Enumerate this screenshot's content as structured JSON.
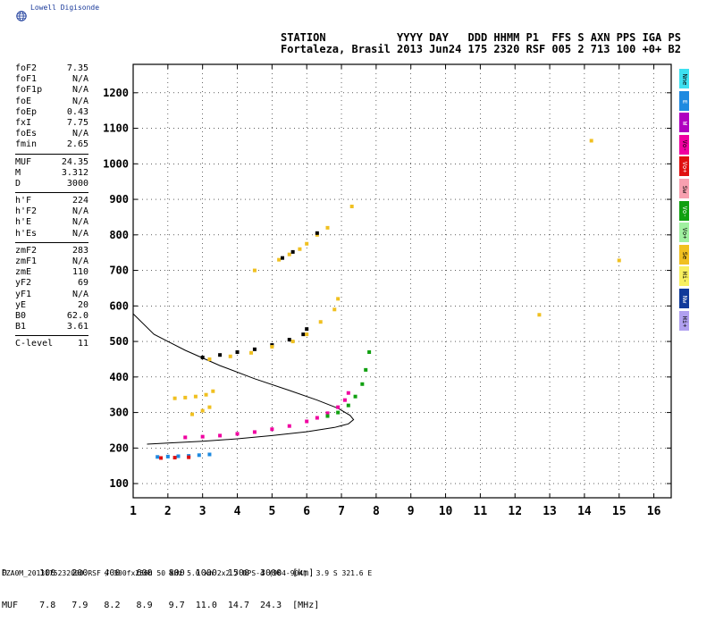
{
  "brand": {
    "name": "Lowell Digisonde",
    "icon": "globe-icon"
  },
  "header": {
    "line1": "STATION           YYYY DAY   DDD HHMM P1  FFS S AXN PPS IGA PS",
    "line2": "Fortaleza, Brasil 2013 Jun24 175 2320 RSF 005 2 713 100 +0+ B2"
  },
  "params": {
    "group1": [
      {
        "label": "foF2",
        "value": "7.35"
      },
      {
        "label": "foF1",
        "value": "N/A"
      },
      {
        "label": "foF1p",
        "value": "N/A"
      },
      {
        "label": "foE",
        "value": "N/A"
      },
      {
        "label": "foEp",
        "value": "0.43"
      },
      {
        "label": "fxI",
        "value": "7.75"
      },
      {
        "label": "foEs",
        "value": "N/A"
      },
      {
        "label": "fmin",
        "value": "2.65"
      }
    ],
    "group2": [
      {
        "label": "MUF",
        "value": "24.35"
      },
      {
        "label": "M",
        "value": "3.312"
      },
      {
        "label": "D",
        "value": "3000"
      }
    ],
    "group3": [
      {
        "label": "h'F",
        "value": "224"
      },
      {
        "label": "h'F2",
        "value": "N/A"
      },
      {
        "label": "h'E",
        "value": "N/A"
      },
      {
        "label": "h'Es",
        "value": "N/A"
      }
    ],
    "group4": [
      {
        "label": "zmF2",
        "value": "283"
      },
      {
        "label": "zmF1",
        "value": "N/A"
      },
      {
        "label": "zmE",
        "value": "110"
      },
      {
        "label": "yF2",
        "value": "69"
      },
      {
        "label": "yF1",
        "value": "N/A"
      },
      {
        "label": "yE",
        "value": "20"
      },
      {
        "label": "B0",
        "value": "62.0"
      },
      {
        "label": "B1",
        "value": "3.61"
      }
    ],
    "group5": [
      {
        "label": "C-level",
        "value": "11"
      }
    ]
  },
  "legend": [
    {
      "label": "Nne",
      "color": "#3de0f0"
    },
    {
      "label": "E",
      "color": "#1e8ae0"
    },
    {
      "label": "W",
      "color": "#b000c0"
    },
    {
      "label": "Vo-",
      "color": "#f000a0"
    },
    {
      "label": "Vo+",
      "color": "#e01010"
    },
    {
      "label": "Sw",
      "color": "#f8a0b0"
    },
    {
      "label": "Vo-",
      "color": "#10a010"
    },
    {
      "label": "Vo+",
      "color": "#a0f0a0"
    },
    {
      "label": "Se",
      "color": "#f0c020"
    },
    {
      "label": "Hi-",
      "color": "#f8f060"
    },
    {
      "label": "Nw",
      "color": "#103a9a"
    },
    {
      "label": "Hi+",
      "color": "#b0a0f0"
    }
  ],
  "muf_table": {
    "d_label": "D",
    "d_values": [
      "100",
      "200",
      "400",
      "600",
      "800",
      "1000",
      "1500",
      "3000"
    ],
    "d_unit": "[km]",
    "muf_label": "MUF",
    "muf_values": [
      "7.8",
      "7.9",
      "8.2",
      "8.9",
      "9.7",
      "11.0",
      "14.7",
      "24.3"
    ],
    "muf_unit": "[MHz]"
  },
  "footer": "FZA0M_2013175232000.RSF / 300fx256h 50 kHz 5.0 km 2x2 / DPS-4 (904-904)  3.9 S 321.6 E",
  "chart_data": {
    "type": "scatter",
    "x_ticks": [
      1,
      2,
      3,
      4,
      5,
      6,
      7,
      8,
      9,
      10,
      11,
      12,
      13,
      14,
      15,
      16
    ],
    "y_ticks": [
      100,
      200,
      300,
      400,
      500,
      600,
      700,
      800,
      900,
      1000,
      1100,
      1200
    ],
    "xlim": [
      1,
      16.5
    ],
    "ylim": [
      60,
      1280
    ],
    "grid": "dotted",
    "profile_curve": [
      [
        1.0,
        578
      ],
      [
        1.6,
        520
      ],
      [
        2.5,
        475
      ],
      [
        3.5,
        432
      ],
      [
        4.5,
        395
      ],
      [
        5.5,
        362
      ],
      [
        6.3,
        335
      ],
      [
        6.9,
        312
      ],
      [
        7.25,
        292
      ],
      [
        7.35,
        280
      ],
      [
        7.2,
        268
      ],
      [
        6.8,
        258
      ],
      [
        6.0,
        246
      ],
      [
        5.0,
        235
      ],
      [
        4.0,
        226
      ],
      [
        3.0,
        219
      ],
      [
        2.0,
        214
      ],
      [
        1.4,
        211
      ]
    ],
    "traces": [
      {
        "name": "F trace",
        "color": "#f000a0",
        "points": [
          [
            2.5,
            230
          ],
          [
            3.0,
            232
          ],
          [
            3.5,
            235
          ],
          [
            4.0,
            240
          ],
          [
            4.5,
            245
          ],
          [
            5.0,
            253
          ],
          [
            5.5,
            262
          ],
          [
            6.0,
            275
          ],
          [
            6.3,
            285
          ],
          [
            6.6,
            298
          ],
          [
            6.9,
            315
          ],
          [
            7.1,
            335
          ],
          [
            7.2,
            355
          ]
        ]
      },
      {
        "name": "F trace green",
        "color": "#10a010",
        "points": [
          [
            6.6,
            290
          ],
          [
            6.9,
            300
          ],
          [
            7.2,
            320
          ],
          [
            7.4,
            345
          ],
          [
            7.6,
            380
          ],
          [
            7.7,
            420
          ],
          [
            7.8,
            470
          ]
        ]
      },
      {
        "name": "2F trace",
        "color": "#000000",
        "points": [
          [
            3.0,
            455
          ],
          [
            3.5,
            462
          ],
          [
            4.0,
            470
          ],
          [
            4.5,
            478
          ],
          [
            5.0,
            490
          ],
          [
            5.5,
            505
          ],
          [
            5.9,
            520
          ],
          [
            6.0,
            535
          ]
        ]
      },
      {
        "name": "2F yellow",
        "color": "#f0c020",
        "points": [
          [
            3.2,
            450
          ],
          [
            3.8,
            458
          ],
          [
            4.4,
            468
          ],
          [
            5.0,
            485
          ],
          [
            5.6,
            500
          ],
          [
            6.0,
            520
          ],
          [
            6.4,
            555
          ],
          [
            6.8,
            590
          ],
          [
            6.9,
            620
          ]
        ]
      },
      {
        "name": "E-like low",
        "color": "#1e8ae0",
        "points": [
          [
            1.7,
            175
          ],
          [
            2.0,
            176
          ],
          [
            2.3,
            177
          ],
          [
            2.6,
            178
          ],
          [
            2.9,
            180
          ],
          [
            3.2,
            182
          ]
        ]
      },
      {
        "name": "E-like low red",
        "color": "#e01010",
        "points": [
          [
            1.8,
            172
          ],
          [
            2.2,
            173
          ],
          [
            2.6,
            174
          ]
        ]
      },
      {
        "name": "Es yellow",
        "color": "#f0c020",
        "points": [
          [
            2.2,
            340
          ],
          [
            2.5,
            342
          ],
          [
            2.8,
            345
          ],
          [
            3.1,
            350
          ],
          [
            3.3,
            360
          ],
          [
            2.7,
            295
          ],
          [
            3.0,
            305
          ],
          [
            3.2,
            315
          ]
        ]
      },
      {
        "name": "3F trace",
        "color": "#f0c020",
        "points": [
          [
            5.2,
            730
          ],
          [
            5.5,
            745
          ],
          [
            5.8,
            760
          ],
          [
            6.0,
            775
          ],
          [
            6.3,
            800
          ],
          [
            6.6,
            820
          ],
          [
            4.5,
            700
          ]
        ]
      },
      {
        "name": "3F black",
        "color": "#000000",
        "points": [
          [
            5.3,
            735
          ],
          [
            5.6,
            752
          ],
          [
            6.3,
            805
          ]
        ]
      },
      {
        "name": "misc",
        "color": "#f0c020",
        "points": [
          [
            12.7,
            575
          ],
          [
            14.2,
            1065
          ],
          [
            15.0,
            728
          ],
          [
            7.3,
            880
          ]
        ]
      }
    ]
  }
}
